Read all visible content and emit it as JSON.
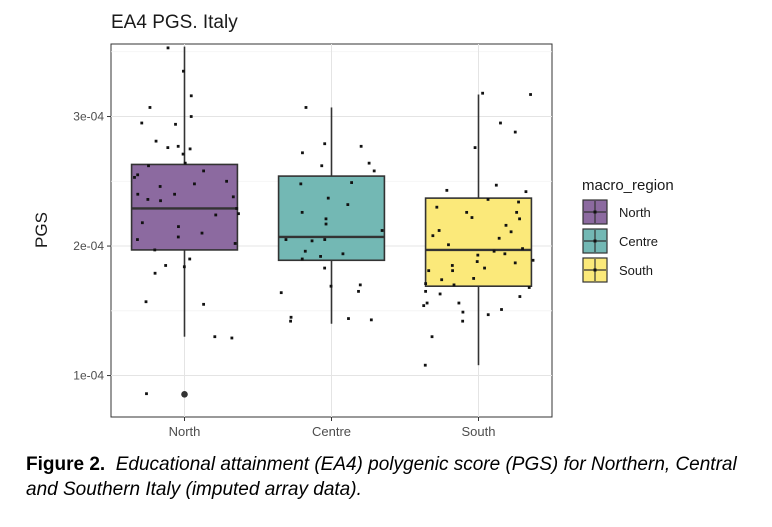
{
  "chart_data": {
    "type": "box",
    "title": "EA4 PGS. Italy",
    "xlabel": "",
    "ylabel": "PGS",
    "ylim": [
      6.8e-05,
      0.000356
    ],
    "y_ticks": [
      {
        "value": 0.0001,
        "label": "1e-04"
      },
      {
        "value": 0.0002,
        "label": "2e-04"
      },
      {
        "value": 0.0003,
        "label": "3e-04"
      }
    ],
    "grid": true,
    "legend": {
      "title": "macro_region",
      "position": "right"
    },
    "categories": [
      "North",
      "Centre",
      "South"
    ],
    "series": [
      {
        "name": "North",
        "color": "#8c6aa0",
        "whisker_low": 0.00013,
        "q1": 0.000197,
        "median": 0.000229,
        "q3": 0.000263,
        "whisker_high": 0.000354,
        "outliers": [
          8.55e-05
        ],
        "points": [
          0.000335,
          0.000316,
          0.000295,
          0.000281,
          0.000277,
          0.000264,
          0.000255,
          0.00025,
          0.000248,
          0.00024,
          0.000235,
          0.000224,
          0.00021,
          0.000205,
          0.000184,
          0.000179,
          0.000155,
          8.6e-05,
          0.0003,
          0.000271,
          0.000262,
          0.000253,
          0.000238,
          0.000229,
          0.000218,
          0.000207,
          0.000202,
          0.000307,
          0.000294,
          0.000275,
          0.000258,
          0.000246,
          0.000236,
          0.000225,
          0.000215,
          0.000197,
          0.00019,
          0.000185,
          0.000157,
          0.00013,
          0.000353,
          0.000276,
          0.00024,
          0.000129
        ]
      },
      {
        "name": "Centre",
        "color": "#73b8b4",
        "whisker_low": 0.00014,
        "q1": 0.000189,
        "median": 0.000207,
        "q3": 0.000254,
        "whisker_high": 0.000307,
        "outliers": [],
        "points": [
          0.000272,
          0.000258,
          0.000237,
          0.000226,
          0.000194,
          0.000192,
          0.00017,
          0.000144,
          0.000145,
          0.000248,
          0.000221,
          0.000205,
          0.000164,
          0.000262,
          0.000249,
          0.000232,
          0.000212,
          0.000204,
          0.000183,
          0.000169,
          0.000279,
          0.000264,
          0.000217,
          0.000205,
          0.000196,
          0.00019,
          0.000165,
          0.000142,
          0.000307,
          0.000277,
          0.000143
        ]
      },
      {
        "name": "South",
        "color": "#fbe97a",
        "whisker_low": 0.000108,
        "q1": 0.000169,
        "median": 0.000197,
        "q3": 0.000237,
        "whisker_high": 0.000317,
        "outliers": [],
        "points": [
          0.000317,
          0.000242,
          0.000234,
          0.000216,
          0.000196,
          0.000183,
          0.000165,
          0.000156,
          0.000142,
          0.000243,
          0.000226,
          0.000206,
          0.000194,
          0.000181,
          0.000168,
          0.000154,
          0.000149,
          0.000236,
          0.000222,
          0.000208,
          0.000189,
          0.000175,
          0.000161,
          0.000147,
          0.000276,
          0.00023,
          0.000211,
          0.000198,
          0.000185,
          0.000171,
          0.000163,
          0.000151,
          0.000295,
          0.000247,
          0.000221,
          0.000201,
          0.000187,
          0.000174,
          0.000156,
          0.00013,
          0.000108,
          0.000318,
          0.000288,
          0.000226,
          0.000212,
          0.000193,
          0.000181,
          0.00017,
          0.000188
        ]
      }
    ]
  },
  "caption": {
    "label": "Figure 2.",
    "text": "Educational attainment (EA4) polygenic score (PGS) for Northern, Central and Southern Italy (imputed array data)."
  }
}
